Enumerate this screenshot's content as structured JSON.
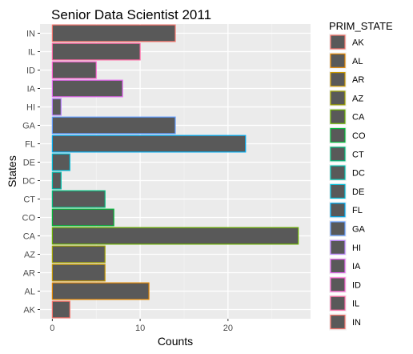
{
  "chart_data": {
    "type": "bar",
    "orientation": "horizontal",
    "title": "Senior Data Scientist 2011",
    "xlabel": "Counts",
    "ylabel": "States",
    "categories": [
      "AK",
      "AL",
      "AR",
      "AZ",
      "CA",
      "CO",
      "CT",
      "DC",
      "DE",
      "FL",
      "GA",
      "HI",
      "IA",
      "ID",
      "IL",
      "IN"
    ],
    "values": [
      2,
      11,
      6,
      6,
      28,
      7,
      6,
      1,
      2,
      22,
      14,
      1,
      8,
      5,
      10,
      14
    ],
    "xlim": [
      -1.4,
      29.4
    ],
    "xticks": [
      0,
      10,
      20
    ],
    "bar_fill": "#595959",
    "grid": true,
    "panel_background": "#ebebeb",
    "legend": {
      "title": "PRIM_STATE",
      "position": "right",
      "items": [
        {
          "label": "AK",
          "color": "#F8766D"
        },
        {
          "label": "AL",
          "color": "#E58700"
        },
        {
          "label": "AR",
          "color": "#C99800"
        },
        {
          "label": "AZ",
          "color": "#A3A500"
        },
        {
          "label": "CA",
          "color": "#6BB100"
        },
        {
          "label": "CO",
          "color": "#00BA38"
        },
        {
          "label": "CT",
          "color": "#00BF7D"
        },
        {
          "label": "DC",
          "color": "#00C0AF"
        },
        {
          "label": "DE",
          "color": "#00BCD8"
        },
        {
          "label": "FL",
          "color": "#00B0F6"
        },
        {
          "label": "GA",
          "color": "#619CFF"
        },
        {
          "label": "HI",
          "color": "#B983FF"
        },
        {
          "label": "IA",
          "color": "#E76BF3"
        },
        {
          "label": "ID",
          "color": "#FD61D1"
        },
        {
          "label": "IL",
          "color": "#FF67A4"
        },
        {
          "label": "IN",
          "color": "#F8766D"
        }
      ]
    }
  }
}
